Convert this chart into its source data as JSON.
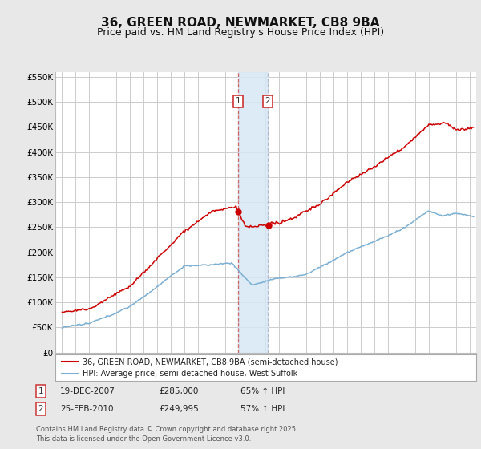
{
  "title": "36, GREEN ROAD, NEWMARKET, CB8 9BA",
  "subtitle": "Price paid vs. HM Land Registry's House Price Index (HPI)",
  "title_fontsize": 11,
  "subtitle_fontsize": 9,
  "background_color": "#e8e8e8",
  "plot_bg_color": "#ffffff",
  "grid_color": "#cccccc",
  "red_color": "#cc0000",
  "blue_color": "#7bafd4",
  "sale1_date": 2007.97,
  "sale1_price": 285000,
  "sale1_label": "1",
  "sale2_date": 2010.15,
  "sale2_price": 249995,
  "sale2_label": "2",
  "marker_bg": "#d6e8f5",
  "legend_label_red": "36, GREEN ROAD, NEWMARKET, CB8 9BA (semi-detached house)",
  "legend_label_blue": "HPI: Average price, semi-detached house, West Suffolk",
  "table_row1": [
    "1",
    "19-DEC-2007",
    "£285,000",
    "65% ↑ HPI"
  ],
  "table_row2": [
    "2",
    "25-FEB-2010",
    "£249,995",
    "57% ↑ HPI"
  ],
  "footer": "Contains HM Land Registry data © Crown copyright and database right 2025.\nThis data is licensed under the Open Government Licence v3.0.",
  "ylim": [
    0,
    560000
  ],
  "yticks": [
    0,
    50000,
    100000,
    150000,
    200000,
    250000,
    300000,
    350000,
    400000,
    450000,
    500000,
    550000
  ],
  "xlim_start": 1994.5,
  "xlim_end": 2025.5
}
